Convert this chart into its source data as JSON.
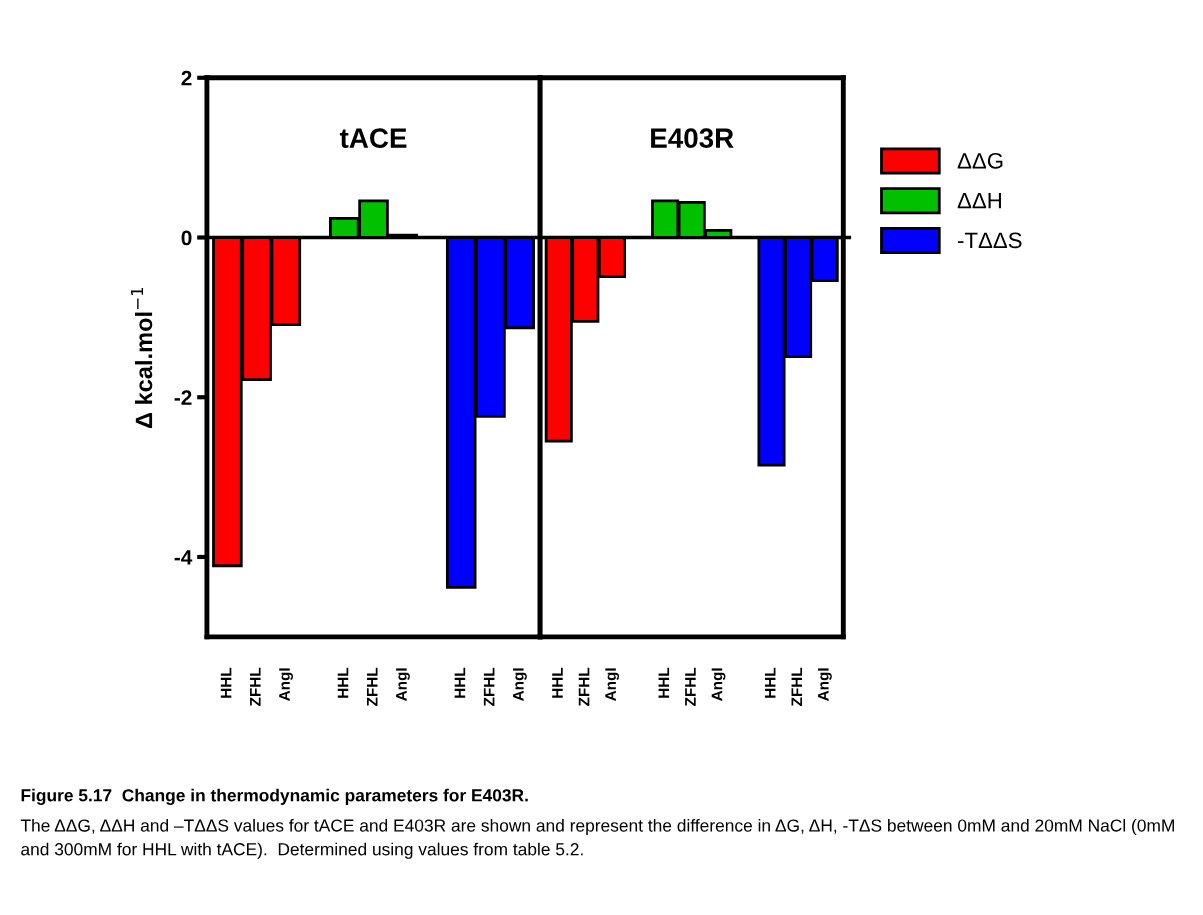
{
  "chart_data": [
    {
      "type": "bar",
      "title": "tACE",
      "ylabel": "Δ kcal.mol$^{−1}$",
      "categories": [
        "HHL",
        "ZFHL",
        "AngI",
        null,
        "HHL",
        "ZFHL",
        "AngI",
        null,
        "HHL",
        "ZFHL",
        "AngI"
      ],
      "series": [
        {
          "color": "#ff0000",
          "values": [
            -4.11,
            -1.78,
            -1.09,
            null,
            null,
            null,
            null,
            null,
            null,
            null,
            null
          ]
        },
        {
          "color": "#00c000",
          "values": [
            null,
            null,
            null,
            null,
            0.24,
            0.46,
            0.03,
            null,
            null,
            null,
            null
          ]
        },
        {
          "color": "#0000ff",
          "values": [
            null,
            null,
            null,
            null,
            null,
            null,
            null,
            null,
            -4.38,
            -2.24,
            -1.13
          ]
        }
      ],
      "ylim": [
        -5,
        2
      ],
      "yticks": [
        -4,
        -2,
        0,
        2
      ],
      "ref_lines": [
        {
          "axis": "y",
          "value": 0,
          "color": "#000000"
        }
      ],
      "annotations": [
        "Figure 5.17  Change in thermodynamic parameters for E403R.",
        "The ΔΔG, ΔΔH and –TΔΔS values for tACE and E403R are shown and represent the difference in ΔG, ΔH, -TΔS between 0mM and 20mM NaCl (0mM and 300mM for HHL with tACE).  Determined using values from table 5.2."
      ]
    },
    {
      "type": "bar",
      "title": "E403R",
      "categories": [
        "HHL",
        "ZFHL",
        "AngI",
        null,
        "HHL",
        "ZFHL",
        "AngI",
        null,
        "HHL",
        "ZFHL",
        "AngI"
      ],
      "series": [
        {
          "name": "ΔΔG",
          "color": "#ff0000",
          "values": [
            -2.55,
            -1.05,
            -0.49,
            null,
            null,
            null,
            null,
            null,
            null,
            null,
            null
          ]
        },
        {
          "name": "ΔΔH",
          "color": "#00c000",
          "values": [
            null,
            null,
            null,
            null,
            0.46,
            0.44,
            0.09,
            null,
            null,
            null,
            null
          ]
        },
        {
          "name": "-TΔΔS",
          "color": "#0000ff",
          "values": [
            null,
            null,
            null,
            null,
            null,
            null,
            null,
            null,
            -2.85,
            -1.49,
            -0.54
          ]
        }
      ],
      "ylim": [
        -5,
        2
      ],
      "tick_labels": "x",
      "ref_lines": [
        {
          "axis": "y",
          "value": 0,
          "color": "#000000"
        }
      ],
      "legend": "right"
    }
  ]
}
